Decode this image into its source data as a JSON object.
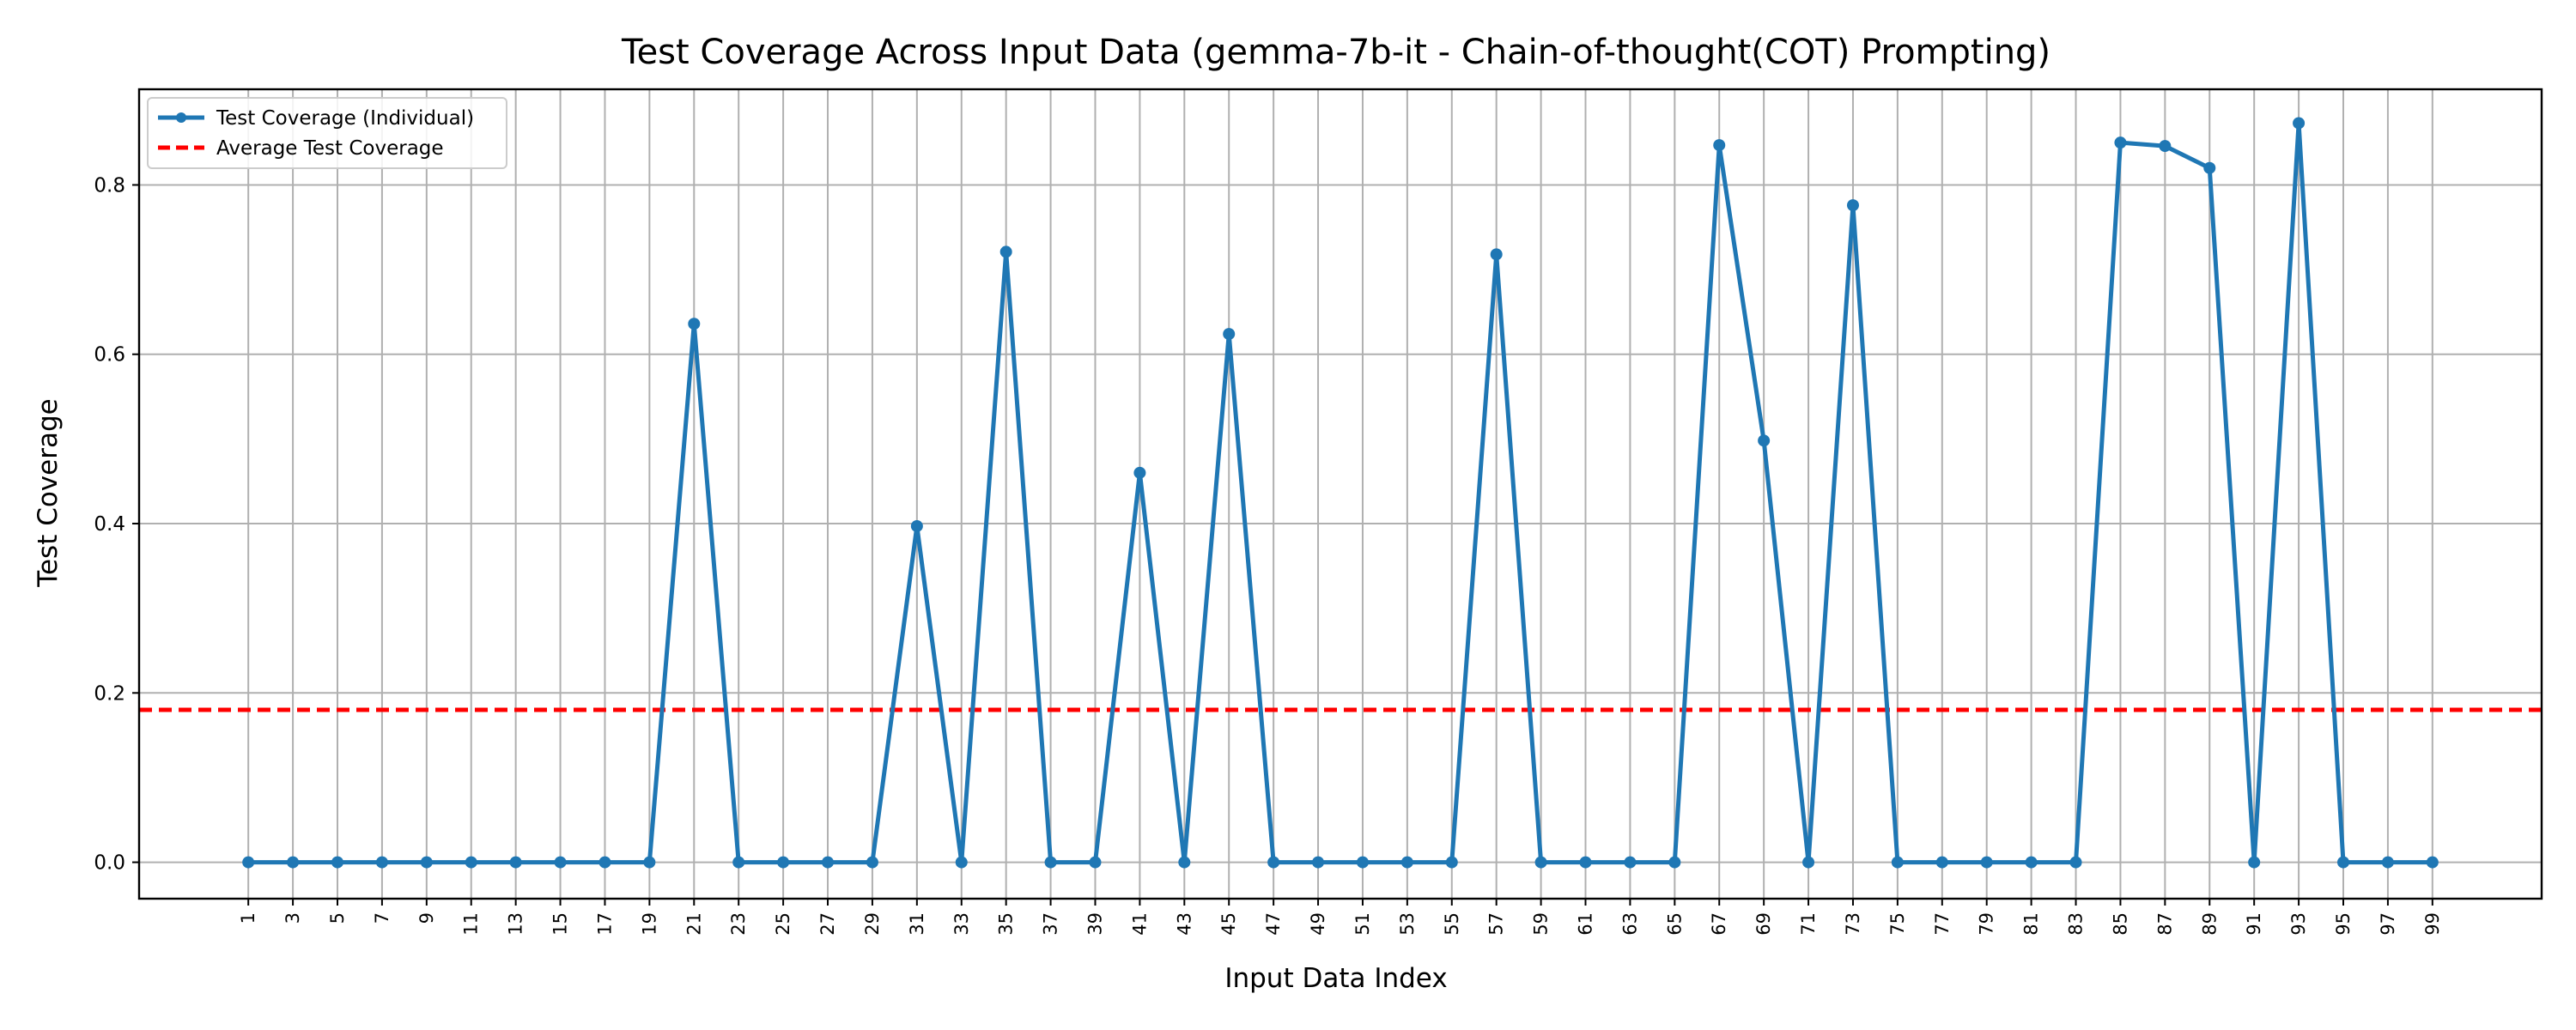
{
  "chart_data": {
    "type": "line",
    "title": "Test Coverage Across Input Data (gemma-7b-it - Chain-of-thought(COT) Prompting)",
    "xlabel": "Input Data Index",
    "ylabel": "Test Coverage",
    "x": [
      1,
      3,
      5,
      7,
      9,
      11,
      13,
      15,
      17,
      19,
      21,
      23,
      25,
      27,
      29,
      31,
      33,
      35,
      37,
      39,
      41,
      43,
      45,
      47,
      49,
      51,
      53,
      55,
      57,
      59,
      61,
      63,
      65,
      67,
      69,
      71,
      73,
      75,
      77,
      79,
      81,
      83,
      85,
      87,
      89,
      91,
      93,
      95,
      97,
      99
    ],
    "series": [
      {
        "name": "Test Coverage (Individual)",
        "color": "#1f77b4",
        "values": [
          0,
          0,
          0,
          0,
          0,
          0,
          0,
          0,
          0,
          0,
          0.636,
          0,
          0,
          0,
          0,
          0.397,
          0,
          0.721,
          0,
          0,
          0.46,
          0,
          0.624,
          0,
          0,
          0,
          0,
          0,
          0.718,
          0,
          0,
          0,
          0,
          0.847,
          0.498,
          0,
          0.776,
          0,
          0,
          0,
          0,
          0,
          0.85,
          0.846,
          0.82,
          0,
          0.873,
          0,
          0,
          0
        ]
      }
    ],
    "average": {
      "name": "Average Test Coverage",
      "value": 0.18,
      "color": "#ff0000"
    },
    "ylim": [
      -0.043,
      0.913
    ],
    "xlim": [
      -3.9,
      103.9
    ],
    "yticks": [
      0.0,
      0.2,
      0.4,
      0.6,
      0.8
    ],
    "ytick_labels": [
      "0.0",
      "0.2",
      "0.4",
      "0.6",
      "0.8"
    ],
    "xtick_labels": [
      "1",
      "3",
      "5",
      "7",
      "9",
      "11",
      "13",
      "15",
      "17",
      "19",
      "21",
      "23",
      "25",
      "27",
      "29",
      "31",
      "33",
      "35",
      "37",
      "39",
      "41",
      "43",
      "45",
      "47",
      "49",
      "51",
      "53",
      "55",
      "57",
      "59",
      "61",
      "63",
      "65",
      "67",
      "69",
      "71",
      "73",
      "75",
      "77",
      "79",
      "81",
      "83",
      "85",
      "87",
      "89",
      "91",
      "93",
      "95",
      "97",
      "99"
    ],
    "grid": true,
    "legend_position": "top-left"
  }
}
